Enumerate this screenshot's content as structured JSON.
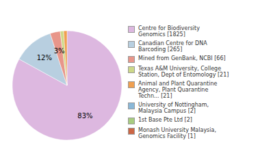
{
  "chart_data": {
    "type": "pie",
    "categories": [
      "Centre for Biodiversity\nGenomics [1825]",
      "Canadian Centre for DNA\nBarcoding [265]",
      "Mined from GenBank, NCBI [66]",
      "Texas A&M University, College\nStation, Dept of Entomology [21]",
      "Animal and Plant Quarantine\nAgency, Plant Quarantine\nTechn... [21]",
      "University of Nottingham,\nMalaysia Campus [2]",
      "1st Base Pte Ltd [2]",
      "Monash University Malaysia,\nGenomics Facility [1]"
    ],
    "values": [
      83,
      12,
      3,
      1,
      1,
      0,
      0,
      0
    ],
    "value_labels": [
      "83%",
      "12%",
      "3%",
      null,
      null,
      null,
      null,
      null
    ],
    "colors": [
      "#ddb8e0",
      "#b8cfe0",
      "#e8968a",
      "#cdd888",
      "#f0a050",
      "#8ab8d8",
      "#a8cc80",
      "#cc6644"
    ],
    "data_labels": true,
    "legend": "right"
  }
}
